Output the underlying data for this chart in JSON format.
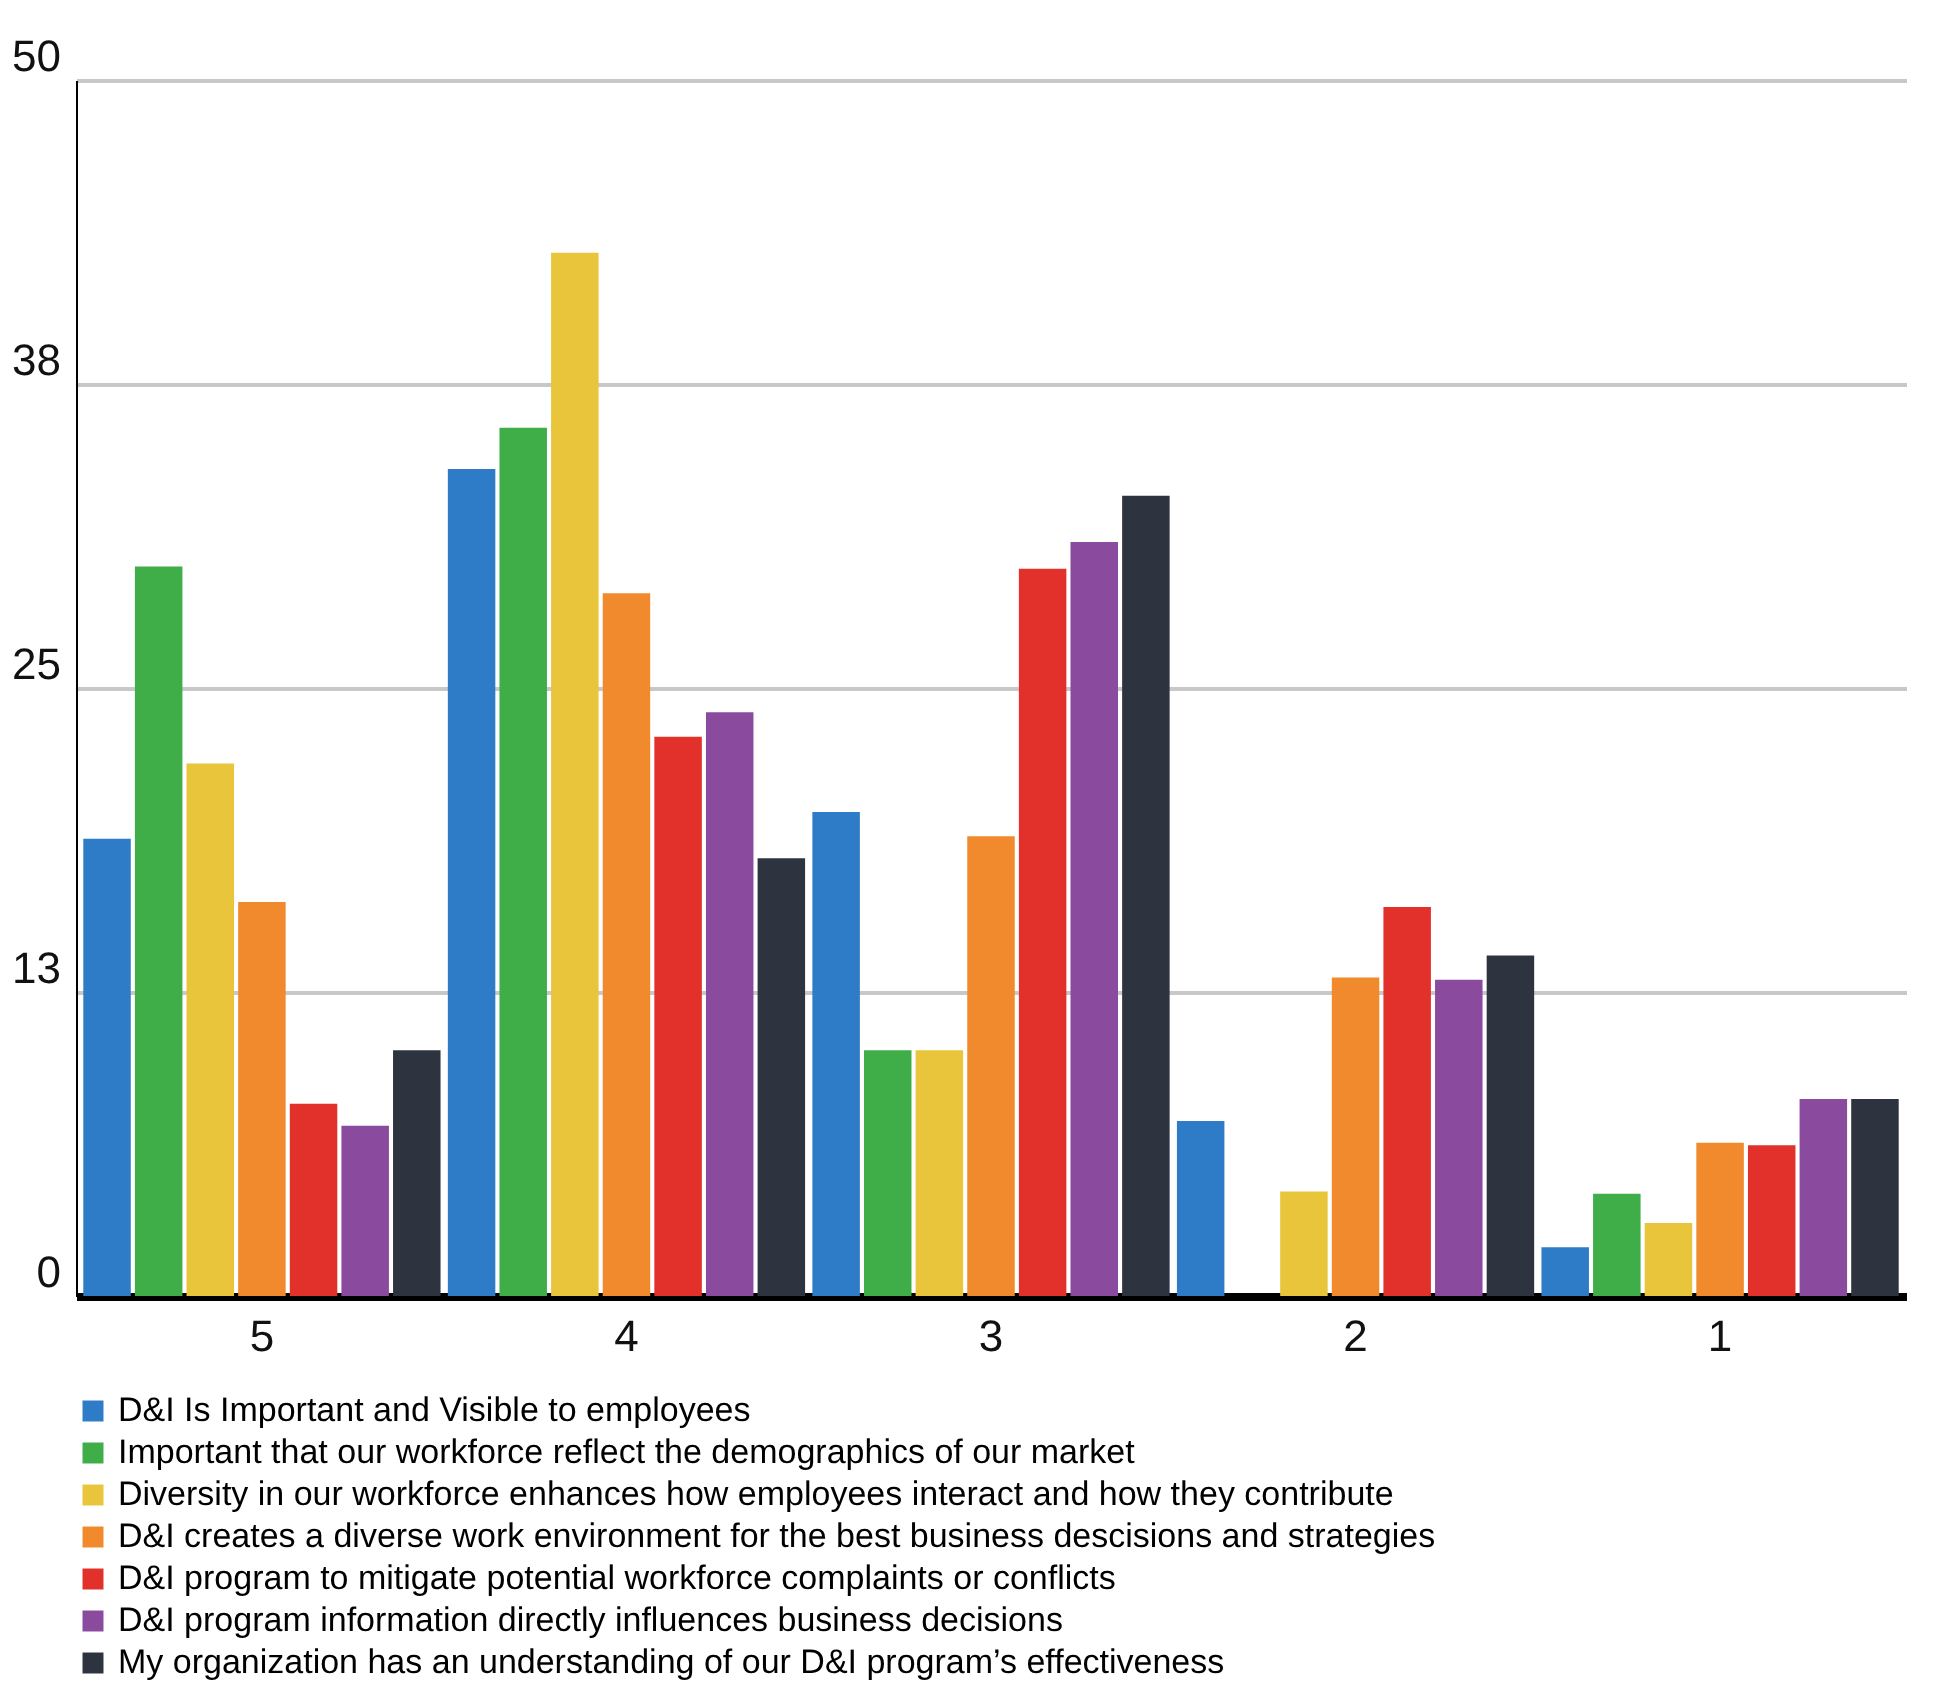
{
  "chart_data": {
    "type": "bar",
    "categories": [
      "5",
      "4",
      "3",
      "2",
      "1"
    ],
    "series": [
      {
        "name": "D&I Is Important and Visible to employees",
        "color": "#2e7cc8",
        "values": [
          18.8,
          34,
          19.9,
          7.2,
          2
        ]
      },
      {
        "name": "Important that our workforce reflect the demographics of our market",
        "color": "#3fae49",
        "values": [
          30,
          35.7,
          10.1,
          0,
          4.2
        ]
      },
      {
        "name": "Diversity in our workforce enhances how employees interact and how they contribute",
        "color": "#e8c53a",
        "values": [
          21.9,
          42.9,
          10.1,
          4.3,
          3
        ]
      },
      {
        "name": "D&I creates a diverse work environment for the best business descisions and strategies",
        "color": "#f08a2c",
        "values": [
          16.2,
          28.9,
          18.9,
          13.1,
          6.3
        ]
      },
      {
        "name": "D&I program to mitigate potential workforce complaints or conflicts",
        "color": "#e2302b",
        "values": [
          7.9,
          23,
          29.9,
          16,
          6.2
        ]
      },
      {
        "name": "D&I program information directly influences business decisions",
        "color": "#8a4a9e",
        "values": [
          7,
          24,
          31,
          13,
          8.1
        ]
      },
      {
        "name": "My organization has an understanding of our D&I program’s effectiveness",
        "color": "#2e3340",
        "values": [
          10.1,
          18,
          32.9,
          14,
          8.1
        ]
      }
    ],
    "ylim": [
      0,
      50
    ],
    "yticks": [
      0,
      {
        "value": 12.5,
        "label": "13"
      },
      25,
      {
        "value": 37.5,
        "label": "38"
      },
      50
    ],
    "grid": "y",
    "legend": "bottom"
  }
}
